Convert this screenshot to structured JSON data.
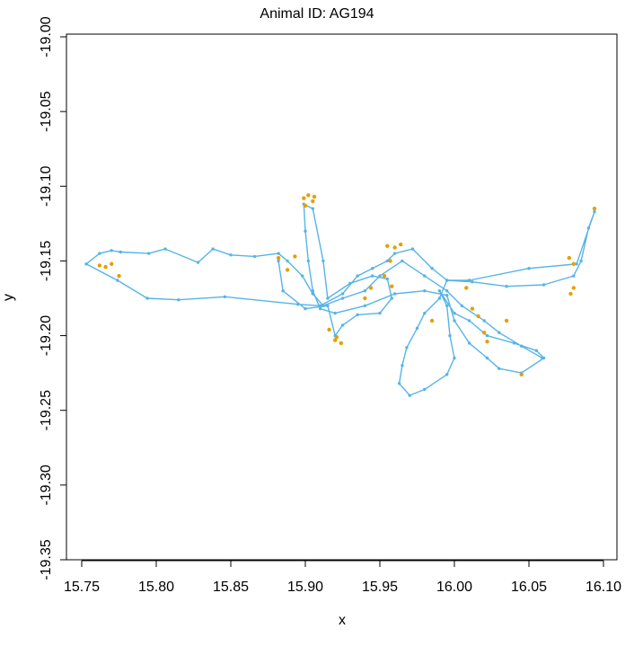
{
  "chart_data": {
    "type": "line",
    "title": "Animal ID: AG194",
    "xlabel": "x",
    "ylabel": "y",
    "xlim": [
      15.75,
      16.1
    ],
    "ylim": [
      -19.35,
      -19.0
    ],
    "x_ticks": [
      "15.75",
      "15.80",
      "15.85",
      "15.90",
      "15.95",
      "16.00",
      "16.05",
      "16.10"
    ],
    "y_ticks": [
      "-19.00",
      "-19.05",
      "-19.10",
      "-19.15",
      "-19.20",
      "-19.25",
      "-19.30",
      "-19.35"
    ],
    "grid": false,
    "colors": {
      "moving": "#56B4E9",
      "resting": "#E69F00",
      "frame": "#000000"
    },
    "series": [
      {
        "values": [
          [
            16.059,
            -19.215
          ],
          [
            16.045,
            -19.207
          ],
          [
            16.03,
            -19.198
          ],
          [
            16.02,
            -19.19
          ],
          [
            16.005,
            -19.18
          ],
          [
            15.995,
            -19.17
          ],
          [
            15.98,
            -19.16
          ],
          [
            15.965,
            -19.15
          ],
          [
            15.95,
            -19.16
          ],
          [
            15.94,
            -19.17
          ],
          [
            15.925,
            -19.175
          ],
          [
            15.912,
            -19.18
          ],
          [
            15.905,
            -19.172
          ],
          [
            15.898,
            -19.16
          ],
          [
            15.888,
            -19.15
          ],
          [
            15.882,
            -19.145
          ],
          [
            15.866,
            -19.147
          ],
          [
            15.85,
            -19.146
          ],
          [
            15.838,
            -19.142
          ],
          [
            15.828,
            -19.151
          ],
          [
            15.806,
            -19.142
          ],
          [
            15.795,
            -19.145
          ],
          [
            15.776,
            -19.144
          ],
          [
            15.77,
            -19.143
          ],
          [
            15.762,
            -19.145
          ],
          [
            15.753,
            -19.152
          ],
          [
            15.774,
            -19.163
          ],
          [
            15.794,
            -19.175
          ],
          [
            15.815,
            -19.176
          ],
          [
            15.846,
            -19.174
          ],
          [
            15.895,
            -19.179
          ],
          [
            15.91,
            -19.18
          ],
          [
            15.925,
            -19.172
          ],
          [
            15.935,
            -19.16
          ],
          [
            15.945,
            -19.155
          ],
          [
            15.955,
            -19.15
          ],
          [
            15.96,
            -19.145
          ],
          [
            15.972,
            -19.142
          ],
          [
            15.985,
            -19.155
          ],
          [
            15.995,
            -19.163
          ],
          [
            16.012,
            -19.164
          ],
          [
            16.035,
            -19.167
          ],
          [
            16.06,
            -19.166
          ],
          [
            16.08,
            -19.16
          ],
          [
            16.085,
            -19.15
          ],
          [
            16.09,
            -19.128
          ],
          [
            16.094,
            -19.117
          ],
          [
            16.082,
            -19.152
          ],
          [
            16.05,
            -19.155
          ],
          [
            16.01,
            -19.163
          ],
          [
            15.995,
            -19.163
          ],
          [
            15.99,
            -19.175
          ],
          [
            15.98,
            -19.185
          ],
          [
            15.975,
            -19.195
          ],
          [
            15.968,
            -19.208
          ],
          [
            15.965,
            -19.22
          ],
          [
            15.963,
            -19.232
          ],
          [
            15.97,
            -19.24
          ],
          [
            15.98,
            -19.236
          ],
          [
            15.995,
            -19.226
          ],
          [
            16.0,
            -19.215
          ],
          [
            15.997,
            -19.2
          ],
          [
            15.995,
            -19.18
          ],
          [
            15.99,
            -19.17
          ],
          [
            16.0,
            -19.185
          ],
          [
            16.01,
            -19.19
          ],
          [
            16.022,
            -19.2
          ],
          [
            16.04,
            -19.205
          ],
          [
            16.055,
            -19.21
          ],
          [
            16.06,
            -19.215
          ],
          [
            16.045,
            -19.225
          ],
          [
            16.03,
            -19.222
          ],
          [
            16.022,
            -19.215
          ],
          [
            16.01,
            -19.205
          ],
          [
            16.0,
            -19.19
          ],
          [
            15.995,
            -19.173
          ],
          [
            15.98,
            -19.17
          ],
          [
            15.96,
            -19.172
          ],
          [
            15.94,
            -19.18
          ],
          [
            15.92,
            -19.185
          ],
          [
            15.91,
            -19.182
          ],
          [
            15.905,
            -19.17
          ],
          [
            15.902,
            -19.15
          ],
          [
            15.9,
            -19.13
          ],
          [
            15.899,
            -19.112
          ],
          [
            15.905,
            -19.115
          ],
          [
            15.912,
            -19.15
          ],
          [
            15.915,
            -19.175
          ],
          [
            15.93,
            -19.165
          ],
          [
            15.945,
            -19.16
          ],
          [
            15.955,
            -19.162
          ],
          [
            15.958,
            -19.175
          ],
          [
            15.95,
            -19.185
          ],
          [
            15.935,
            -19.186
          ],
          [
            15.925,
            -19.193
          ],
          [
            15.92,
            -19.2
          ],
          [
            15.915,
            -19.18
          ],
          [
            15.9,
            -19.182
          ],
          [
            15.885,
            -19.17
          ],
          [
            15.882,
            -19.15
          ]
        ]
      }
    ],
    "resting_points": [
      [
        15.899,
        -19.108
      ],
      [
        15.902,
        -19.106
      ],
      [
        15.905,
        -19.11
      ],
      [
        15.9,
        -19.113
      ],
      [
        15.906,
        -19.107
      ],
      [
        15.762,
        -19.153
      ],
      [
        15.766,
        -19.154
      ],
      [
        15.77,
        -19.152
      ],
      [
        15.775,
        -19.16
      ],
      [
        15.882,
        -19.148
      ],
      [
        15.888,
        -19.156
      ],
      [
        15.893,
        -19.147
      ],
      [
        15.916,
        -19.196
      ],
      [
        15.921,
        -19.201
      ],
      [
        15.924,
        -19.205
      ],
      [
        15.92,
        -19.203
      ],
      [
        15.955,
        -19.14
      ],
      [
        15.96,
        -19.141
      ],
      [
        15.964,
        -19.139
      ],
      [
        15.957,
        -19.15
      ],
      [
        15.953,
        -19.16
      ],
      [
        15.958,
        -19.167
      ],
      [
        15.985,
        -19.19
      ],
      [
        16.008,
        -19.168
      ],
      [
        16.012,
        -19.182
      ],
      [
        16.016,
        -19.187
      ],
      [
        16.02,
        -19.198
      ],
      [
        16.022,
        -19.204
      ],
      [
        16.035,
        -19.19
      ],
      [
        16.045,
        -19.226
      ],
      [
        16.077,
        -19.148
      ],
      [
        16.08,
        -19.152
      ],
      [
        16.078,
        -19.172
      ],
      [
        16.08,
        -19.168
      ],
      [
        16.094,
        -19.115
      ],
      [
        15.94,
        -19.175
      ],
      [
        15.944,
        -19.168
      ]
    ]
  }
}
